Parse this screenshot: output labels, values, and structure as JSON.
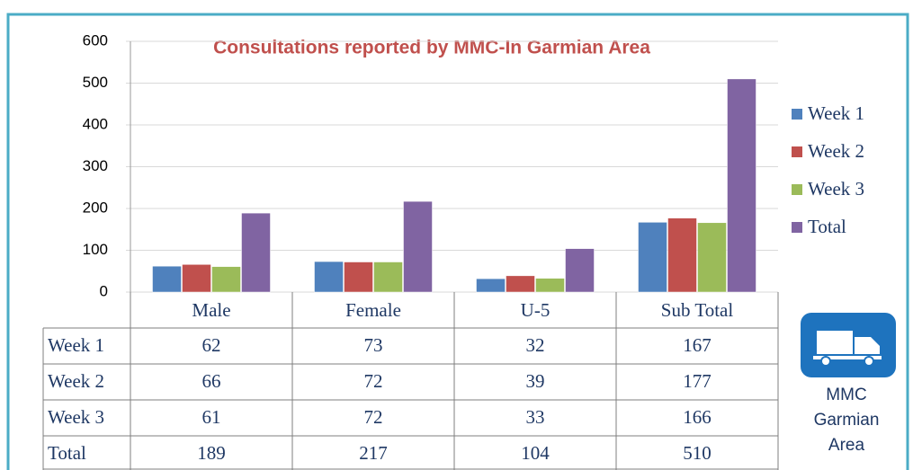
{
  "chart_data": {
    "type": "bar",
    "title": "Consultations reported by MMC-In Garmian Area",
    "categories": [
      "Male",
      "Female",
      "U-5",
      "Sub Total"
    ],
    "series": [
      {
        "name": "Week 1",
        "color": "#4f81bd",
        "values": [
          62,
          73,
          32,
          167
        ]
      },
      {
        "name": "Week 2",
        "color": "#c0504d",
        "values": [
          66,
          72,
          39,
          177
        ]
      },
      {
        "name": "Week 3",
        "color": "#9bbb59",
        "values": [
          61,
          72,
          33,
          166
        ]
      },
      {
        "name": "Total",
        "color": "#8064a2",
        "values": [
          189,
          217,
          104,
          510
        ]
      }
    ],
    "ylim": [
      0,
      600
    ],
    "yticks": [
      0,
      100,
      200,
      300,
      400,
      500,
      600
    ],
    "grid": true,
    "legend": "right",
    "annotations": [
      "MMC",
      "Garmian",
      "Area"
    ]
  }
}
